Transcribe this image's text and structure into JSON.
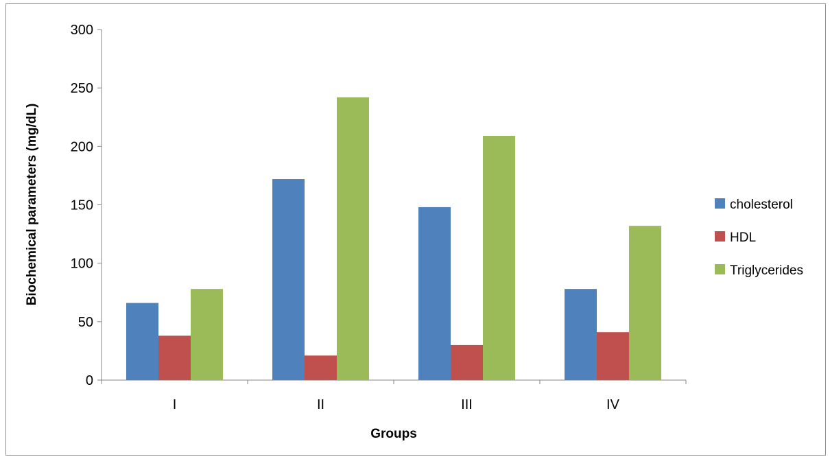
{
  "chart_data": {
    "type": "bar",
    "title": "",
    "xlabel": "Groups",
    "ylabel": "Biochemical parameters (mg/dL)",
    "categories": [
      "I",
      "II",
      "III",
      "IV"
    ],
    "ylim": [
      0,
      300
    ],
    "yticks": [
      0,
      50,
      100,
      150,
      200,
      250,
      300
    ],
    "grid": false,
    "legend_position": "right",
    "series": [
      {
        "name": "cholesterol",
        "color": "#4f81bd",
        "values": [
          66,
          172,
          148,
          78
        ]
      },
      {
        "name": "HDL",
        "color": "#c0504d",
        "values": [
          38,
          21,
          30,
          41
        ]
      },
      {
        "name": "Triglycerides",
        "color": "#9bbb59",
        "values": [
          78,
          242,
          209,
          132
        ]
      }
    ]
  }
}
